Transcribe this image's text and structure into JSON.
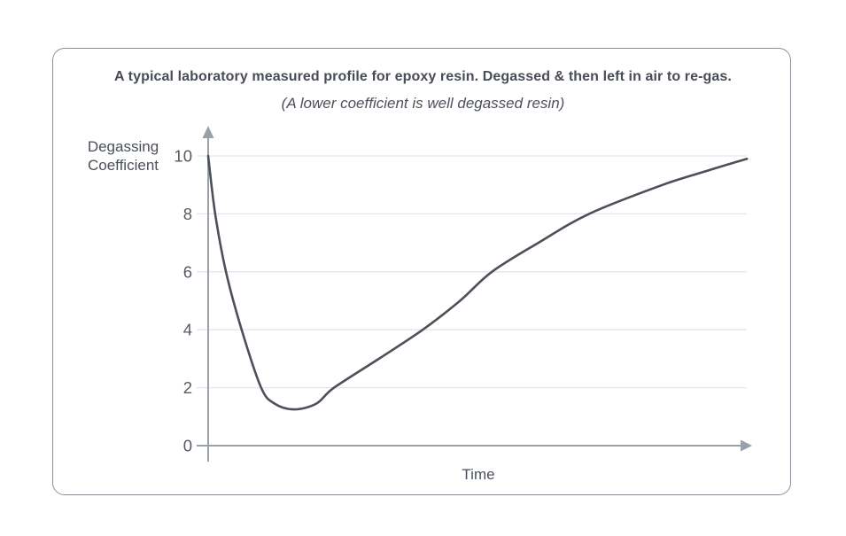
{
  "card": {
    "border_color": "#8b919b",
    "background_color": "#ffffff"
  },
  "chart_data": {
    "type": "line",
    "title": "A typical laboratory measured profile for epoxy resin. Degassed & then left in air to re-gas.",
    "subtitle": "(A lower coefficient is well degassed resin)",
    "ylabel": "Degassing Coefficient",
    "xlabel": "Time",
    "ylim": [
      0,
      10
    ],
    "xlim": [
      0,
      1
    ],
    "yticks": [
      10,
      8,
      6,
      4,
      2,
      0
    ],
    "xticks": [],
    "grid": "horizontal gridlines at each labeled y tick, short tick dash left of y-axis",
    "legend": "none",
    "axes": "y-axis with upward arrow, x-axis (at y=0) with rightward arrow",
    "series": [
      {
        "name": "Degassing coefficient profile (degassed, then re-gassing in air)",
        "x_note": "time in relative units 0–1 (axis has no numeric labels)",
        "points": [
          [
            0.0,
            10.0
          ],
          [
            0.013,
            8.0
          ],
          [
            0.033,
            6.0
          ],
          [
            0.062,
            4.0
          ],
          [
            0.098,
            2.0
          ],
          [
            0.123,
            1.45
          ],
          [
            0.159,
            1.25
          ],
          [
            0.2,
            1.45
          ],
          [
            0.233,
            2.0
          ],
          [
            0.316,
            3.0
          ],
          [
            0.397,
            4.0
          ],
          [
            0.466,
            5.0
          ],
          [
            0.525,
            6.0
          ],
          [
            0.611,
            7.0
          ],
          [
            0.705,
            8.0
          ],
          [
            0.841,
            9.0
          ],
          [
            0.926,
            9.5
          ],
          [
            0.997,
            9.9
          ]
        ]
      }
    ],
    "colors": {
      "curve": "#4b5059",
      "axis": "#9aa0a9",
      "gridline": "#e4e6e9",
      "title_text": "#474c56",
      "tick_text": "#565b64"
    }
  }
}
